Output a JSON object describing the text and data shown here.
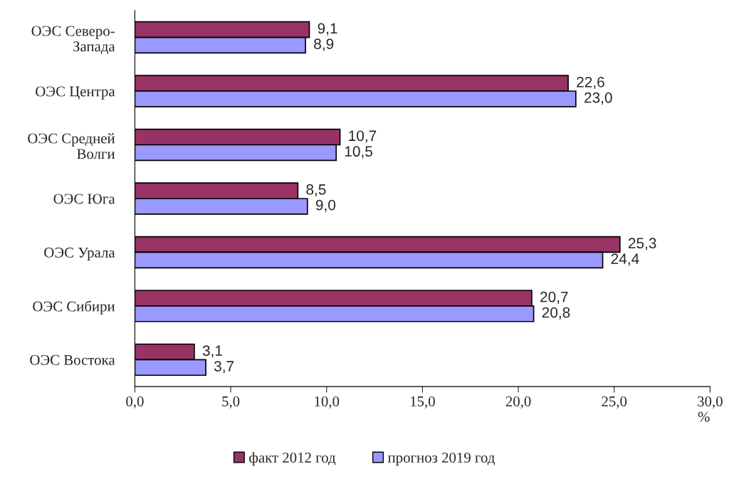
{
  "chart_data": {
    "type": "bar",
    "orientation": "horizontal",
    "categories": [
      "ОЭС Северо-\nЗапада",
      "ОЭС Центра",
      "ОЭС Средней\nВолги",
      "ОЭС Юга",
      "ОЭС Урала",
      "ОЭС Сибири",
      "ОЭС Востока"
    ],
    "series": [
      {
        "name": "факт 2012 год",
        "color": "#993366",
        "values": [
          9.1,
          22.6,
          10.7,
          8.5,
          25.3,
          20.7,
          3.1
        ],
        "value_labels": [
          "9,1",
          "22,6",
          "10,7",
          "8,5",
          "25,3",
          "20,7",
          "3,1"
        ]
      },
      {
        "name": "прогноз 2019 год",
        "color": "#9999ff",
        "values": [
          8.9,
          23.0,
          10.5,
          9.0,
          24.4,
          20.8,
          3.7
        ],
        "value_labels": [
          "8,9",
          "23,0",
          "10,5",
          "9,0",
          "24,4",
          "20,8",
          "3,7"
        ]
      }
    ],
    "xlim": [
      0,
      30
    ],
    "xticks": [
      {
        "value": 0,
        "label": "0,0"
      },
      {
        "value": 5,
        "label": "5,0"
      },
      {
        "value": 10,
        "label": "10,0"
      },
      {
        "value": 15,
        "label": "15,0"
      },
      {
        "value": 20,
        "label": "20,0"
      },
      {
        "value": 25,
        "label": "25,0"
      },
      {
        "value": 30,
        "label": "30,0"
      }
    ],
    "xlabel": "%",
    "grid": false,
    "legend": "bottom"
  }
}
